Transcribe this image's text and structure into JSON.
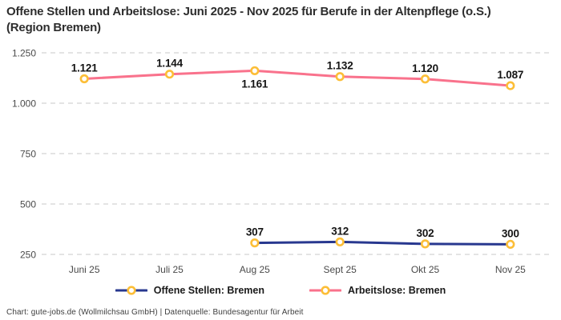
{
  "title": "Offene Stellen und Arbeitslose: Juni 2025 - Nov 2025 für Berufe in der Altenpflege (o.S.) (Region Bremen)",
  "footer": "Chart: gute-jobs.de (Wollmilchsau GmbH) | Datenquelle: Bundesagentur für Arbeit",
  "colors": {
    "open_positions": "#28388f",
    "unemployed": "#f9728c",
    "marker_ring": "#fcbe37",
    "marker_fill": "#ffffff",
    "gridline": "#c9c9c9",
    "axis_text": "#4a4a4a",
    "value_label_text": "#141414",
    "title_text": "#2d2d2d",
    "legend_text": "#1a1a1a",
    "footer_text": "#3f3f3f"
  },
  "chart_data": {
    "type": "line",
    "categories": [
      "Juni 25",
      "Juli 25",
      "Aug 25",
      "Sept 25",
      "Okt 25",
      "Nov 25"
    ],
    "series": [
      {
        "name": "Offene Stellen: Bremen",
        "color_key": "open_positions",
        "values": [
          null,
          null,
          307,
          312,
          302,
          300
        ],
        "value_labels": [
          null,
          null,
          "307",
          "312",
          "302",
          "300"
        ],
        "label_positions": [
          null,
          null,
          "above",
          "above",
          "above",
          "above"
        ]
      },
      {
        "name": "Arbeitslose: Bremen",
        "color_key": "unemployed",
        "values": [
          1121,
          1144,
          1161,
          1132,
          1120,
          1087
        ],
        "value_labels": [
          "1.121",
          "1.144",
          "1.161",
          "1.132",
          "1.120",
          "1.087"
        ],
        "label_positions": [
          "above",
          "above",
          "below",
          "above",
          "above",
          "above"
        ]
      }
    ],
    "y_ticks": [
      250,
      500,
      750,
      1000,
      1250
    ],
    "y_tick_labels": [
      "250",
      "500",
      "750",
      "1.000",
      "1.250"
    ],
    "ylim": [
      250,
      1250
    ],
    "grid": "horizontal-dashed",
    "legend_position": "bottom"
  }
}
